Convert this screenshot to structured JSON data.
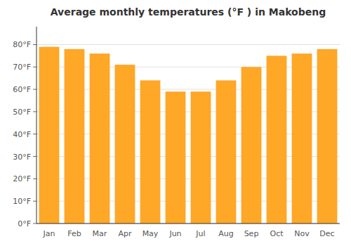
{
  "chart_data": {
    "type": "bar",
    "title": "Average monthly temperatures (°F ) in Makobeng",
    "categories": [
      "Jan",
      "Feb",
      "Mar",
      "Apr",
      "May",
      "Jun",
      "Jul",
      "Aug",
      "Sep",
      "Oct",
      "Nov",
      "Dec"
    ],
    "values": [
      79,
      78,
      76,
      71,
      64,
      59,
      59,
      64,
      70,
      75,
      76,
      78
    ],
    "color": "#FFA726",
    "ylim": [
      0,
      88
    ],
    "yticks": [
      {
        "value": 0,
        "label": "0°F"
      },
      {
        "value": 10,
        "label": "10°F"
      },
      {
        "value": 20,
        "label": "20°F"
      },
      {
        "value": 30,
        "label": "30°F"
      },
      {
        "value": 40,
        "label": "40°F"
      },
      {
        "value": 50,
        "label": "50°F"
      },
      {
        "value": 60,
        "label": "60°F"
      },
      {
        "value": 70,
        "label": "70°F"
      },
      {
        "value": 80,
        "label": "80°F"
      }
    ],
    "grid": true
  }
}
